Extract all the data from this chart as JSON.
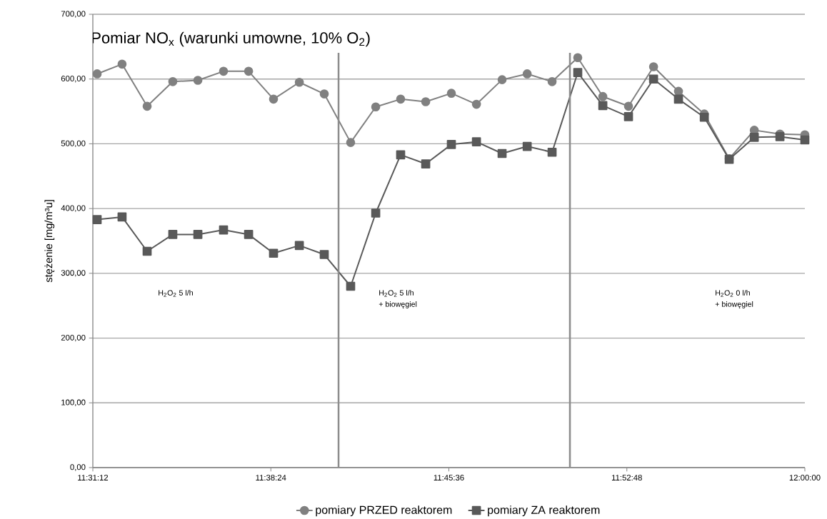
{
  "chart_data": {
    "type": "line",
    "title": "Pomiar NO$_{x}$  (warunki umowne, 10% O$_{2}$)",
    "ylabel": "stężenie [mg/m³u]",
    "x": [
      11.5229,
      11.5397,
      11.5566,
      11.5739,
      11.5908,
      11.6081,
      11.625,
      11.6418,
      11.6592,
      11.676,
      11.6938,
      11.7107,
      11.7275,
      11.7444,
      11.7617,
      11.7786,
      11.7959,
      11.8128,
      11.8296,
      11.8469,
      11.8638,
      11.8811,
      11.898,
      11.9148,
      11.9322,
      11.949,
      11.9659,
      11.9832,
      12.0
    ],
    "series": [
      {
        "name": "pomiary PRZED reaktorem",
        "color": "#808080",
        "marker": "circle",
        "values": [
          608,
          623,
          558,
          596,
          598,
          612,
          612,
          569,
          595,
          577,
          502,
          557,
          569,
          565,
          578,
          561,
          599,
          608,
          596,
          633,
          573,
          558,
          619,
          581,
          546,
          477,
          521,
          515,
          514
        ]
      },
      {
        "name": "pomiary ZA reaktorem",
        "color": "#595959",
        "marker": "square",
        "values": [
          383,
          387,
          334,
          360,
          360,
          367,
          360,
          331,
          343,
          329,
          280,
          393,
          483,
          469,
          499,
          503,
          485,
          496,
          487,
          610,
          559,
          542,
          600,
          569,
          541,
          476,
          510,
          511,
          506
        ]
      }
    ],
    "xlim": [
      11.52,
      12.0
    ],
    "xticks": [
      {
        "value": 11.52,
        "label": "11:31:12"
      },
      {
        "value": 11.64,
        "label": "11:38:24"
      },
      {
        "value": 11.76,
        "label": "11:45:36"
      },
      {
        "value": 11.88,
        "label": "11:52:48"
      },
      {
        "value": 12.0,
        "label": "12:00:00"
      }
    ],
    "ylim": [
      0,
      700
    ],
    "yticks": [
      {
        "value": 0,
        "label": "0,00"
      },
      {
        "value": 100,
        "label": "100,00"
      },
      {
        "value": 200,
        "label": "200,00"
      },
      {
        "value": 300,
        "label": "300,00"
      },
      {
        "value": 400,
        "label": "400,00"
      },
      {
        "value": 500,
        "label": "500,00"
      },
      {
        "value": 600,
        "label": "600,00"
      },
      {
        "value": 700,
        "label": "700,00"
      }
    ],
    "ref_lines": [
      {
        "axis": "x",
        "value": 11.6856,
        "color": "#8c8c8c"
      },
      {
        "axis": "x",
        "value": 11.8416,
        "color": "#8c8c8c"
      }
    ],
    "annotations": [
      "H$_{2}$O$_{2}$ 5 l/h",
      "H$_{2}$O$_{2}$ 5 l/h",
      "+ biowęgiel",
      "H$_{2}$O$_{2}$ 0 l/h",
      "+ biowęgiel"
    ],
    "grid": "y",
    "legend": "bottom",
    "line_style": "solid"
  }
}
